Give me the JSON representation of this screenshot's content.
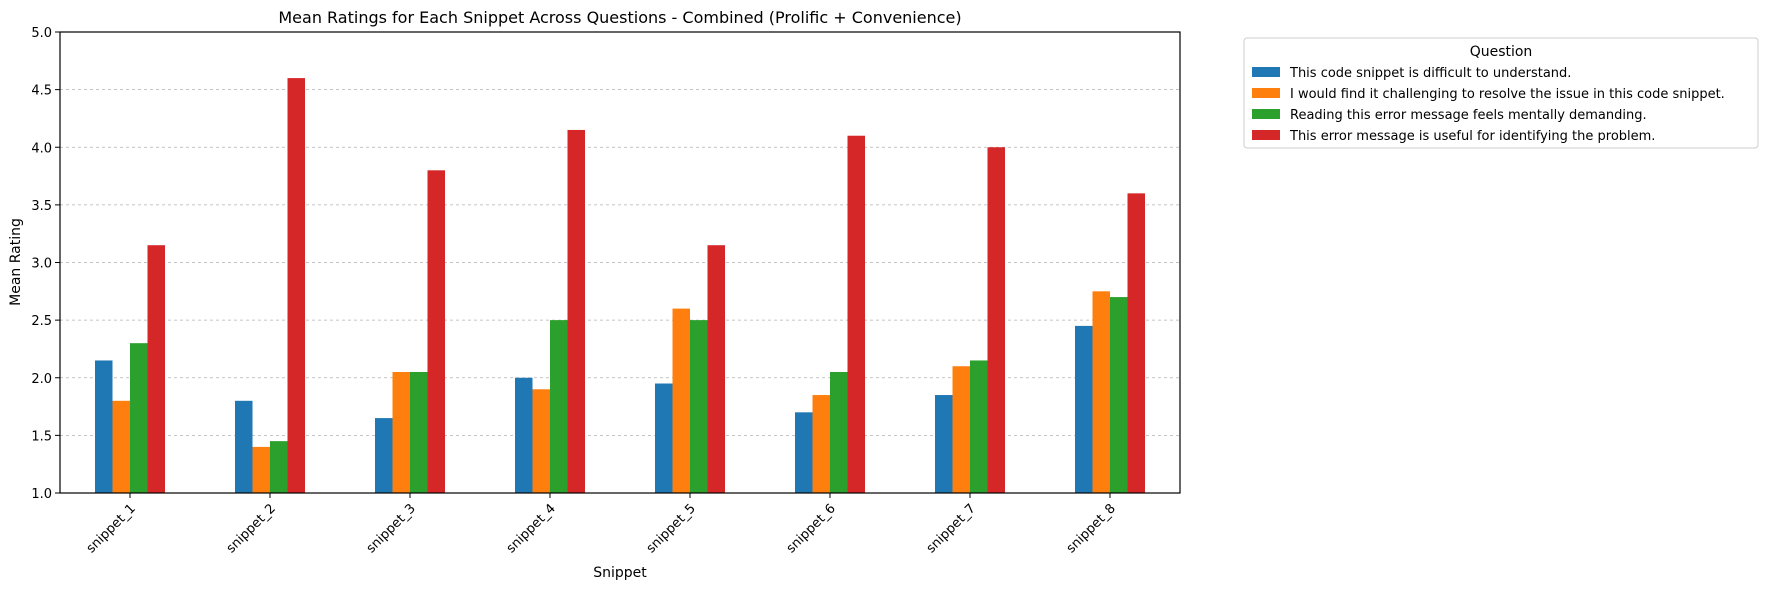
{
  "chart_data": {
    "type": "bar",
    "title": "Mean Ratings for Each Snippet Across Questions - Combined (Prolific + Convenience)",
    "xlabel": "Snippet",
    "ylabel": "Mean Rating",
    "ylim": [
      1.0,
      5.0
    ],
    "yticks": [
      "1.0",
      "1.5",
      "2.0",
      "2.5",
      "3.0",
      "3.5",
      "4.0",
      "4.5",
      "5.0"
    ],
    "grid": "y-dashed",
    "legend_position": "outside-top-right",
    "legend_title": "Question",
    "categories": [
      "snippet_1",
      "snippet_2",
      "snippet_3",
      "snippet_4",
      "snippet_5",
      "snippet_6",
      "snippet_7",
      "snippet_8"
    ],
    "series": [
      {
        "name": "This code snippet is difficult to understand.",
        "color": "#1f77b4",
        "values": [
          2.15,
          1.8,
          1.65,
          2.0,
          1.95,
          1.7,
          1.85,
          2.45
        ]
      },
      {
        "name": "I would find it challenging to resolve the issue in this code snippet.",
        "color": "#ff7f0e",
        "values": [
          1.8,
          1.4,
          2.05,
          1.9,
          2.6,
          1.85,
          2.1,
          2.75
        ]
      },
      {
        "name": "Reading this error message feels mentally demanding.",
        "color": "#2ca02c",
        "values": [
          2.3,
          1.45,
          2.05,
          2.5,
          2.5,
          2.05,
          2.15,
          2.7
        ]
      },
      {
        "name": "This error message is useful for identifying the problem.",
        "color": "#d62728",
        "values": [
          3.15,
          4.6,
          3.8,
          4.15,
          3.15,
          4.1,
          4.0,
          3.6
        ]
      }
    ]
  }
}
